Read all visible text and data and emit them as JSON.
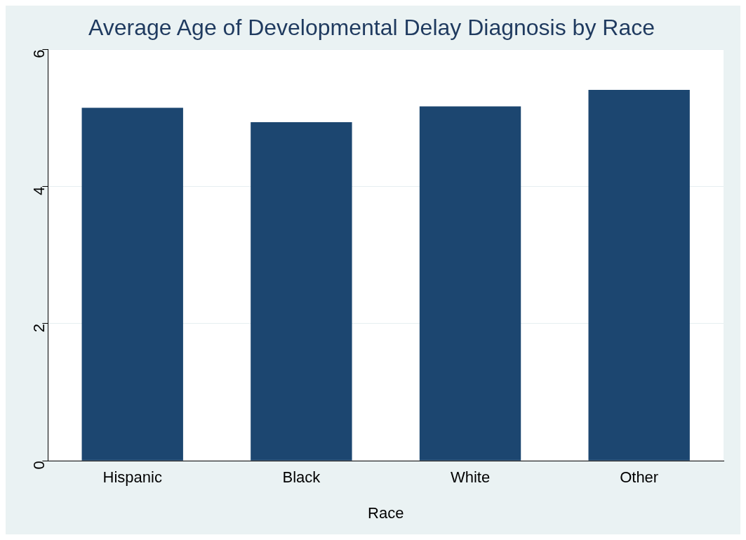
{
  "chart_data": {
    "type": "bar",
    "title": "Average Age of Developmental Delay Diagnosis by Race",
    "xlabel": "Race",
    "categories": [
      "Hispanic",
      "Black",
      "White",
      "Other"
    ],
    "values": [
      5.15,
      4.94,
      5.17,
      5.41
    ],
    "color": "#1c4670",
    "ylim": [
      0,
      6
    ],
    "yticks": [
      0,
      2,
      4,
      6
    ],
    "grid": "y"
  }
}
